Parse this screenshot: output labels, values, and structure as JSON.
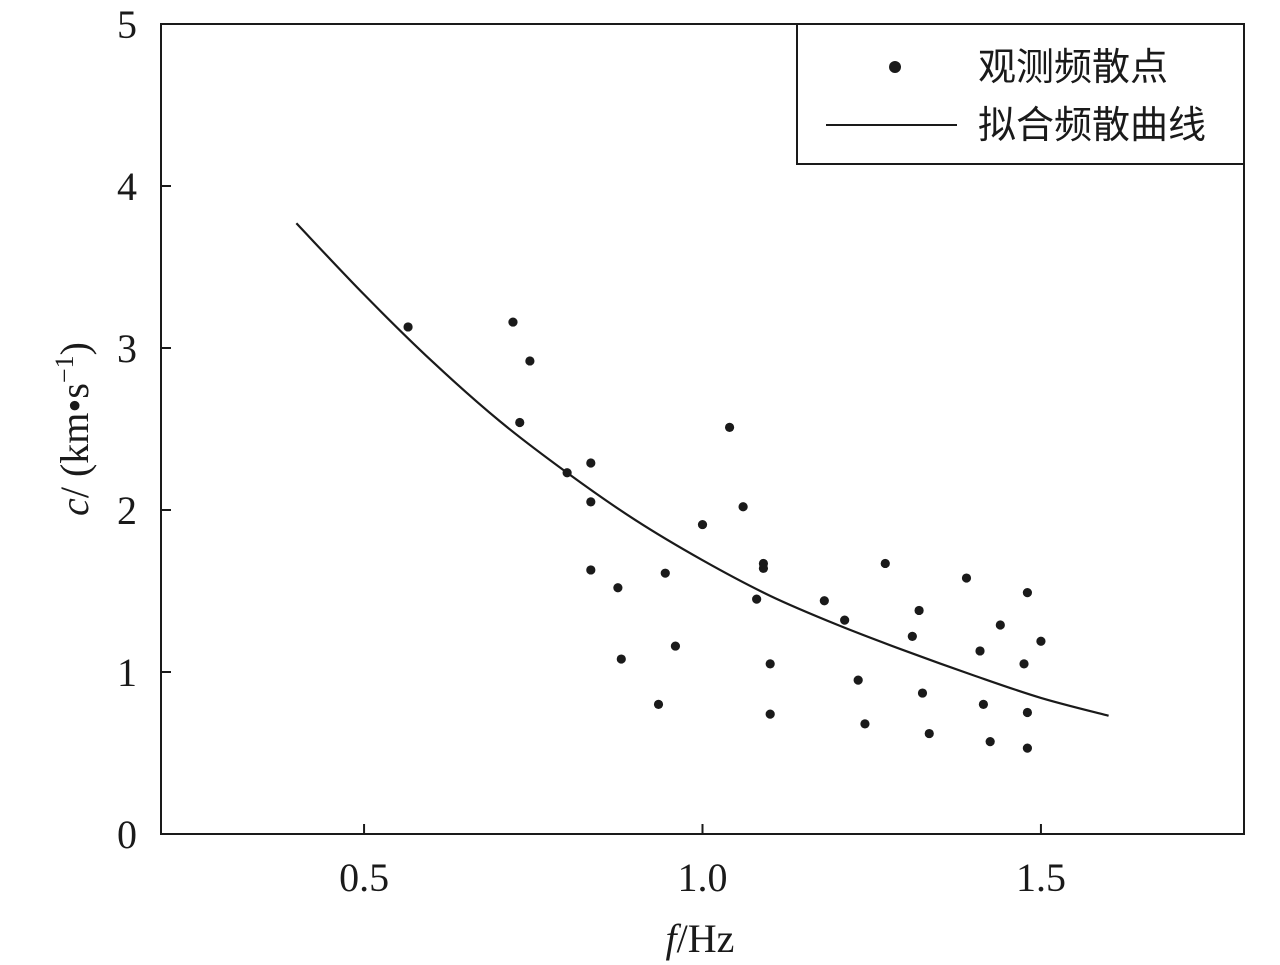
{
  "chart_data": {
    "type": "scatter",
    "xlabel": {
      "var": "f",
      "unit": "/Hz"
    },
    "ylabel": {
      "var": "c",
      "unit": "/ (km•s",
      "sup": "−1",
      "close": ")"
    },
    "xlim": [
      0.2,
      1.8
    ],
    "ylim": [
      0,
      5
    ],
    "xticks": [
      0.5,
      1.0,
      1.5
    ],
    "xtick_labels": [
      "0.5",
      "1.0",
      "1.5"
    ],
    "yticks": [
      0,
      1,
      2,
      3,
      4,
      5
    ],
    "ytick_labels": [
      "0",
      "1",
      "2",
      "3",
      "4",
      "5"
    ],
    "grid": false,
    "legend_position": "top-right",
    "legend": [
      {
        "label": "观测频散点",
        "marker": "dot"
      },
      {
        "label": "拟合频散曲线",
        "marker": "line"
      }
    ],
    "series": [
      {
        "name": "观测频散点",
        "kind": "scatter",
        "color": "#1a1a1a",
        "points": [
          [
            0.565,
            3.13
          ],
          [
            0.72,
            3.16
          ],
          [
            0.73,
            2.54
          ],
          [
            0.745,
            2.92
          ],
          [
            0.8,
            2.23
          ],
          [
            0.835,
            2.29
          ],
          [
            0.835,
            2.05
          ],
          [
            0.835,
            1.63
          ],
          [
            0.875,
            1.52
          ],
          [
            0.88,
            1.08
          ],
          [
            0.935,
            0.8
          ],
          [
            0.945,
            1.61
          ],
          [
            0.96,
            1.16
          ],
          [
            1.0,
            1.91
          ],
          [
            1.04,
            2.51
          ],
          [
            1.06,
            2.02
          ],
          [
            1.08,
            1.45
          ],
          [
            1.09,
            1.67
          ],
          [
            1.09,
            1.64
          ],
          [
            1.1,
            1.05
          ],
          [
            1.1,
            0.74
          ],
          [
            1.18,
            1.44
          ],
          [
            1.21,
            1.32
          ],
          [
            1.23,
            0.95
          ],
          [
            1.24,
            0.68
          ],
          [
            1.27,
            1.67
          ],
          [
            1.31,
            1.22
          ],
          [
            1.32,
            1.38
          ],
          [
            1.325,
            0.87
          ],
          [
            1.335,
            0.62
          ],
          [
            1.39,
            1.58
          ],
          [
            1.41,
            1.13
          ],
          [
            1.415,
            0.8
          ],
          [
            1.425,
            0.57
          ],
          [
            1.44,
            1.29
          ],
          [
            1.475,
            1.05
          ],
          [
            1.48,
            1.49
          ],
          [
            1.48,
            0.75
          ],
          [
            1.48,
            0.53
          ],
          [
            1.5,
            1.19
          ]
        ]
      },
      {
        "name": "拟合频散曲线",
        "kind": "line",
        "color": "#1a1a1a",
        "points": [
          [
            0.4,
            3.77
          ],
          [
            0.5,
            3.33
          ],
          [
            0.6,
            2.92
          ],
          [
            0.7,
            2.55
          ],
          [
            0.8,
            2.23
          ],
          [
            0.9,
            1.94
          ],
          [
            1.0,
            1.69
          ],
          [
            1.1,
            1.47
          ],
          [
            1.2,
            1.29
          ],
          [
            1.3,
            1.13
          ],
          [
            1.4,
            0.98
          ],
          [
            1.5,
            0.84
          ],
          [
            1.6,
            0.73
          ]
        ]
      }
    ]
  }
}
